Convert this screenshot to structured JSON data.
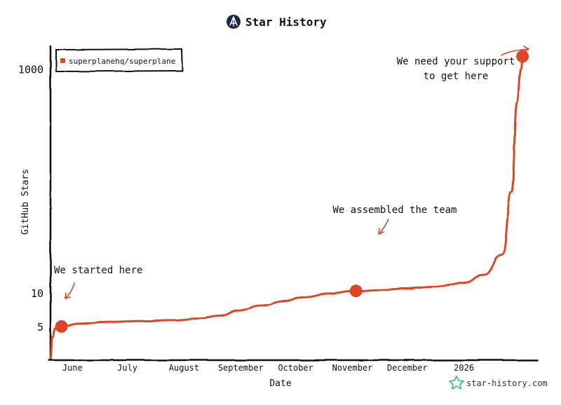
{
  "header": {
    "title": "Star History",
    "logo_icon": "star-history-logo-icon"
  },
  "footer": {
    "brand_text": "star-history.com",
    "brand_icon": "star-icon",
    "brand_color": "#22c55e"
  },
  "chart_data": {
    "type": "line",
    "title": "Star History",
    "xlabel": "Date",
    "ylabel": "GitHub Stars",
    "y_scale": "log",
    "ylim": [
      2.5,
      1600
    ],
    "grid": false,
    "legend_position": "top-left",
    "x_tick_labels": [
      "June",
      "July",
      "August",
      "September",
      "October",
      "November",
      "December",
      "2026"
    ],
    "x_ticks": [
      "2025-06-01",
      "2025-07-01",
      "2025-08-01",
      "2025-09-01",
      "2025-10-01",
      "2025-11-01",
      "2025-12-01",
      "2026-01-01"
    ],
    "xlim": [
      "2025-05-20",
      "2026-02-10"
    ],
    "y_tick_labels": [
      "5",
      "10",
      "1000"
    ],
    "y_ticks": [
      5,
      10,
      1000
    ],
    "series": [
      {
        "name": "superplanehq/superplane",
        "color": "#dd4528",
        "points": [
          {
            "x": "2025-05-20",
            "y": 2.6
          },
          {
            "x": "2025-05-21",
            "y": 4.0
          },
          {
            "x": "2025-05-23",
            "y": 4.8
          },
          {
            "x": "2025-05-26",
            "y": 5.0
          },
          {
            "x": "2025-06-05",
            "y": 5.3
          },
          {
            "x": "2025-06-20",
            "y": 5.5
          },
          {
            "x": "2025-07-10",
            "y": 5.6
          },
          {
            "x": "2025-07-25",
            "y": 5.7
          },
          {
            "x": "2025-08-10",
            "y": 5.9
          },
          {
            "x": "2025-08-20",
            "y": 6.2
          },
          {
            "x": "2025-08-31",
            "y": 6.9
          },
          {
            "x": "2025-09-12",
            "y": 7.7
          },
          {
            "x": "2025-09-25",
            "y": 8.4
          },
          {
            "x": "2025-10-05",
            "y": 9.1
          },
          {
            "x": "2025-10-20",
            "y": 9.8
          },
          {
            "x": "2025-11-01",
            "y": 10.3
          },
          {
            "x": "2025-11-15",
            "y": 10.6
          },
          {
            "x": "2025-11-30",
            "y": 10.9
          },
          {
            "x": "2025-12-15",
            "y": 11.3
          },
          {
            "x": "2026-01-01",
            "y": 12.3
          },
          {
            "x": "2026-01-12",
            "y": 14.5
          },
          {
            "x": "2026-01-22",
            "y": 22
          },
          {
            "x": "2026-01-27",
            "y": 80
          },
          {
            "x": "2026-01-30",
            "y": 500
          },
          {
            "x": "2026-02-01",
            "y": 1000
          },
          {
            "x": "2026-02-02",
            "y": 1300
          }
        ]
      }
    ],
    "annotations": [
      {
        "x": "2025-05-26",
        "y": 5.0,
        "lines": [
          "We started here"
        ]
      },
      {
        "x": "2025-11-03",
        "y": 10.4,
        "lines": [
          "We assembled the team"
        ]
      },
      {
        "x": "2026-02-02",
        "y": 1300,
        "lines": [
          "We need your support",
          "to get here"
        ]
      }
    ]
  }
}
